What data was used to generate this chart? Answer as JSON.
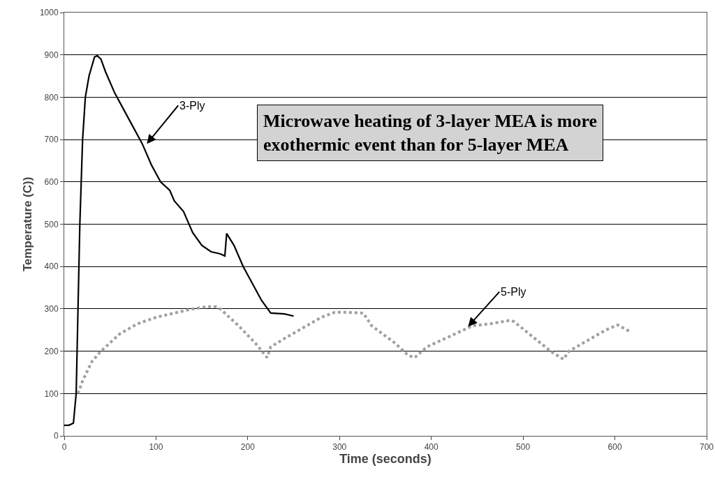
{
  "chart_data": {
    "type": "line",
    "xlabel": "Time (seconds)",
    "ylabel": "Temperature (C))",
    "xlim": [
      0,
      700
    ],
    "xticks": [
      0,
      100,
      200,
      300,
      400,
      500,
      600,
      700
    ],
    "ylim": [
      0,
      1000
    ],
    "yticks": [
      0,
      100,
      200,
      300,
      400,
      500,
      600,
      700,
      800,
      900,
      1000
    ],
    "grid": "y",
    "marker": "none",
    "series": [
      {
        "color": "#000000",
        "line_style": "solid",
        "x": [
          0,
          5,
          10,
          13,
          15,
          17,
          20,
          23,
          27,
          33,
          36,
          40,
          45,
          55,
          65,
          75,
          85,
          95,
          105,
          115,
          120,
          130,
          140,
          150,
          160,
          170,
          175,
          177,
          185,
          195,
          205,
          215,
          225,
          240,
          250
        ],
        "values": [
          25,
          25,
          30,
          100,
          300,
          500,
          700,
          800,
          850,
          895,
          898,
          890,
          860,
          810,
          770,
          730,
          690,
          640,
          600,
          580,
          555,
          530,
          480,
          450,
          435,
          430,
          425,
          478,
          450,
          400,
          360,
          320,
          290,
          288,
          283
        ]
      },
      {
        "color": "#a0a0a0",
        "line_style": "dotted",
        "x": [
          15,
          20,
          30,
          40,
          50,
          60,
          80,
          100,
          120,
          140,
          155,
          165,
          170,
          190,
          210,
          221,
          225,
          240,
          260,
          280,
          295,
          305,
          326,
          335,
          360,
          375,
          382,
          395,
          420,
          445,
          465,
          486,
          490,
          510,
          530,
          544,
          550,
          570,
          590,
          603,
          616
        ],
        "values": [
          100,
          130,
          175,
          200,
          220,
          240,
          265,
          280,
          290,
          300,
          305,
          305,
          300,
          260,
          215,
          185,
          210,
          230,
          255,
          280,
          292,
          292,
          290,
          260,
          220,
          190,
          185,
          210,
          235,
          260,
          265,
          273,
          270,
          235,
          200,
          181,
          200,
          225,
          250,
          262,
          247
        ]
      }
    ],
    "annotations": [
      {
        "text": "3-Ply",
        "x": 90,
        "y": 690
      },
      {
        "text": "5-Ply",
        "x": 440,
        "y": 258
      },
      "Microwave heating of 3-layer MEA is more exothermic event than for 5-layer MEA"
    ]
  }
}
